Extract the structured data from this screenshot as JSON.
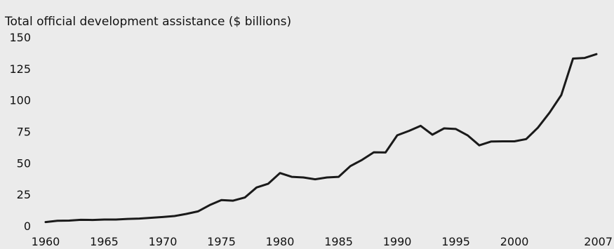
{
  "chart_data": {
    "type": "line",
    "title": "",
    "ylabel": "Total official development assistance ($ billions)",
    "xlabel": "",
    "ylim": [
      0,
      150
    ],
    "xlim": [
      1960,
      2007
    ],
    "yticks": [
      0,
      25,
      50,
      75,
      100,
      125,
      150
    ],
    "xticks": [
      1960,
      1965,
      1970,
      1975,
      1980,
      1985,
      1990,
      1995,
      2000,
      2007
    ],
    "grid": false,
    "legend": "none",
    "colors": {
      "background": "#ebebeb",
      "line": "#1a1a1a"
    },
    "series": [
      {
        "x": [
          1960,
          1961,
          1962,
          1963,
          1964,
          1965,
          1966,
          1967,
          1968,
          1969,
          1970,
          1971,
          1972,
          1973,
          1974,
          1975,
          1976,
          1977,
          1978,
          1979,
          1980,
          1981,
          1982,
          1983,
          1984,
          1985,
          1986,
          1987,
          1988,
          1989,
          1990,
          1991,
          1992,
          1993,
          1994,
          1995,
          1996,
          1997,
          1998,
          1999,
          2000,
          2001,
          2002,
          2003,
          2004,
          2005,
          2006,
          2007
        ],
        "values": [
          3,
          4,
          4.2,
          4.8,
          4.7,
          5,
          5,
          5.5,
          5.8,
          6.4,
          7,
          7.8,
          9.5,
          11.5,
          16.5,
          20.5,
          20,
          22.5,
          30.5,
          33.5,
          42,
          39,
          38.5,
          37,
          38.5,
          39,
          47.5,
          52.5,
          58.5,
          58.3,
          72,
          75.5,
          79.5,
          72.5,
          77.5,
          77,
          72,
          64,
          67,
          67.2,
          67.2,
          69,
          78,
          90,
          104,
          133,
          133.5,
          136.5
        ]
      }
    ]
  }
}
